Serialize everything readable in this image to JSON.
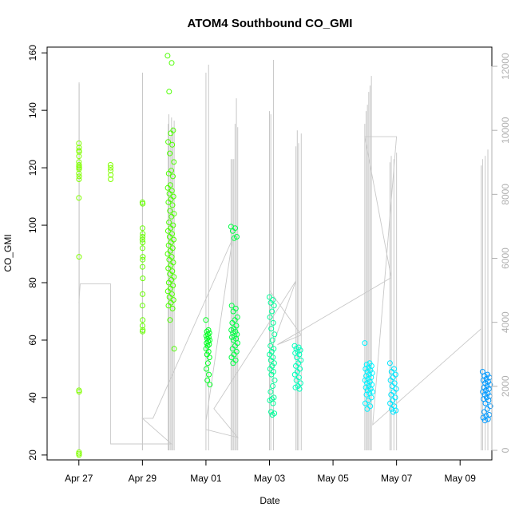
{
  "chart_data": {
    "type": "scatter",
    "title": "ATOM4 Southbound CO_GMI",
    "xlabel": "Date",
    "ylabel": "CO_GMI",
    "xlim": [
      "2018-04-26",
      "2018-05-10"
    ],
    "ylim": [
      18.3,
      162
    ],
    "yticks": [
      20,
      40,
      60,
      80,
      100,
      120,
      140,
      160
    ],
    "y2lim": [
      -300,
      12600
    ],
    "y2ticks": [
      0,
      2000,
      4000,
      6000,
      8000,
      10000,
      12000
    ],
    "xticks": [
      {
        "date": "2018-04-27",
        "label": "Apr 27"
      },
      {
        "date": "2018-04-29",
        "label": "Apr 29"
      },
      {
        "date": "2018-05-01",
        "label": "May 01"
      },
      {
        "date": "2018-05-03",
        "label": "May 03"
      },
      {
        "date": "2018-05-05",
        "label": "May 05"
      },
      {
        "date": "2018-05-07",
        "label": "May 07"
      },
      {
        "date": "2018-05-09",
        "label": "May 09"
      }
    ],
    "grid": false,
    "legend": "none",
    "point_colors": [
      "#80ff00",
      "#4dff00",
      "#00ff33",
      "#00ff66",
      "#00ffdd",
      "#00e6ff",
      "#0099ff"
    ],
    "altitude_color": "#c8c8c8",
    "clusters": [
      {
        "x_start": "2018-04-27T00:00",
        "x_end": "2018-04-27T00:12",
        "color": "#80ff00",
        "values": [
          128.5,
          127,
          126,
          125.5,
          124,
          122,
          121,
          120.5,
          120,
          119.5,
          118,
          117,
          116,
          109.5,
          89,
          42.5,
          42,
          21,
          20.5,
          20
        ]
      },
      {
        "x_start": "2018-04-27T23:55",
        "x_end": "2018-04-28T00:05",
        "color": "#80ff00",
        "values": [
          121,
          120,
          119,
          117.5,
          116
        ]
      },
      {
        "x_start": "2018-04-29T00:00",
        "x_end": "2018-04-29T00:20",
        "color": "#66ff00",
        "values": [
          108,
          107.5,
          99,
          97,
          96,
          95,
          94,
          92,
          89,
          88,
          85.5,
          81.5,
          76,
          72,
          67,
          65,
          63.5,
          63
        ]
      },
      {
        "x_start": "2018-04-29T19:00",
        "x_end": "2018-04-30T00:00",
        "color": "#4dff00",
        "values": [
          159,
          156.5,
          146.5,
          133,
          132,
          129,
          128,
          125,
          122,
          119,
          118,
          117,
          114,
          113,
          112,
          111,
          110,
          109,
          108,
          107,
          105,
          104,
          103,
          101,
          100,
          99,
          98,
          97,
          96,
          95,
          94,
          93,
          92,
          91,
          90,
          89,
          88,
          87,
          86,
          85,
          84,
          83,
          82,
          81,
          80,
          79,
          78,
          77,
          76,
          75,
          74,
          73,
          72,
          71,
          67,
          57
        ]
      },
      {
        "x_start": "2018-05-01T00:00",
        "x_end": "2018-05-01T03:00",
        "color": "#00ff22",
        "values": [
          67,
          63.5,
          63,
          62.5,
          62,
          61.5,
          61,
          60.5,
          60,
          59.5,
          59,
          58.5,
          58,
          57,
          56,
          55,
          54,
          52,
          50,
          48,
          46,
          44.5
        ]
      },
      {
        "x_start": "2018-05-01T19:00",
        "x_end": "2018-05-02T00:00",
        "color": "#00ff44",
        "values": [
          99.5,
          99,
          98,
          96,
          95.5,
          72,
          71,
          70,
          68,
          67,
          66,
          65,
          64,
          63.5,
          63,
          62.5,
          62,
          61.5,
          61,
          60.5,
          60,
          59,
          58,
          57,
          56,
          55,
          54,
          53,
          52
        ]
      },
      {
        "x_start": "2018-05-03T00:00",
        "x_end": "2018-05-03T04:00",
        "color": "#00ff99",
        "values": [
          75,
          74,
          73,
          72,
          70,
          68,
          66,
          64,
          62,
          60,
          58,
          57,
          56,
          55,
          54,
          53,
          52,
          51,
          50,
          49,
          48,
          46,
          44,
          42,
          40,
          39.5,
          39,
          38,
          35,
          34.5,
          34
        ]
      },
      {
        "x_start": "2018-05-03T19:00",
        "x_end": "2018-05-04T00:00",
        "color": "#00ffbb",
        "values": [
          58,
          57.5,
          57,
          56.5,
          56,
          55.5,
          55,
          54,
          53,
          52,
          51,
          50,
          49,
          48,
          47,
          46,
          45,
          44,
          43.5,
          43
        ]
      },
      {
        "x_start": "2018-05-06T00:00",
        "x_end": "2018-05-06T06:00",
        "color": "#00f2ff",
        "values": [
          59,
          52,
          51.5,
          51,
          50.5,
          50,
          49.5,
          49,
          48.5,
          48,
          47.5,
          47,
          46.5,
          46,
          45.5,
          45,
          44.5,
          44,
          43.5,
          43,
          42.5,
          42,
          41.5,
          41,
          40,
          39,
          38,
          37,
          36
        ]
      },
      {
        "x_start": "2018-05-06T19:00",
        "x_end": "2018-05-07T00:00",
        "color": "#00e6ff",
        "values": [
          52,
          50,
          49,
          48,
          47,
          46,
          45,
          44,
          43,
          42,
          41,
          40,
          39,
          38,
          37,
          36,
          35.5,
          35
        ]
      },
      {
        "x_start": "2018-05-09T17:00",
        "x_end": "2018-05-09T23:00",
        "color": "#0099ff",
        "values": [
          49,
          48,
          47.5,
          47,
          46.5,
          46,
          45.5,
          45,
          44.5,
          44,
          43.5,
          43,
          42.5,
          42,
          41.5,
          41,
          40.5,
          40,
          39.5,
          39,
          38,
          37,
          36,
          35,
          34,
          33.5,
          33,
          32.5,
          32
        ]
      }
    ],
    "altitude_spikes": [
      {
        "date": "2018-04-27T00:10",
        "altitude": 11500
      },
      {
        "date": "2018-04-27T00:12",
        "altitude": 11450
      },
      {
        "date": "2018-04-29T00:00",
        "altitude": 10000
      },
      {
        "date": "2018-04-29T00:05",
        "altitude": 11800
      },
      {
        "date": "2018-04-29T19:30",
        "altitude": 10200
      },
      {
        "date": "2018-04-29T20:00",
        "altitude": 10500
      },
      {
        "date": "2018-04-29T21:00",
        "altitude": 9800
      },
      {
        "date": "2018-04-29T22:00",
        "altitude": 10400
      },
      {
        "date": "2018-04-29T23:00",
        "altitude": 10100
      },
      {
        "date": "2018-04-30T00:00",
        "altitude": 10300
      },
      {
        "date": "2018-05-01T00:00",
        "altitude": 11800
      },
      {
        "date": "2018-05-01T02:00",
        "altitude": 12050
      },
      {
        "date": "2018-05-01T19:00",
        "altitude": 9100
      },
      {
        "date": "2018-05-01T20:00",
        "altitude": 9100
      },
      {
        "date": "2018-05-01T21:00",
        "altitude": 9100
      },
      {
        "date": "2018-05-01T22:00",
        "altitude": 10200
      },
      {
        "date": "2018-05-01T23:00",
        "altitude": 11000
      },
      {
        "date": "2018-05-02T00:00",
        "altitude": 10100
      },
      {
        "date": "2018-05-03T00:00",
        "altitude": 10600
      },
      {
        "date": "2018-05-03T01:00",
        "altitude": 10500
      },
      {
        "date": "2018-05-03T03:00",
        "altitude": 12200
      },
      {
        "date": "2018-05-03T20:00",
        "altitude": 9500
      },
      {
        "date": "2018-05-03T21:00",
        "altitude": 10000
      },
      {
        "date": "2018-05-03T22:00",
        "altitude": 9600
      },
      {
        "date": "2018-05-04T00:00",
        "altitude": 9900
      },
      {
        "date": "2018-05-06T00:00",
        "altitude": 10200
      },
      {
        "date": "2018-05-06T01:00",
        "altitude": 10600
      },
      {
        "date": "2018-05-06T02:00",
        "altitude": 10800
      },
      {
        "date": "2018-05-06T03:00",
        "altitude": 11200
      },
      {
        "date": "2018-05-06T04:00",
        "altitude": 11400
      },
      {
        "date": "2018-05-06T05:00",
        "altitude": 11700
      },
      {
        "date": "2018-05-06T19:00",
        "altitude": 9000
      },
      {
        "date": "2018-05-06T20:00",
        "altitude": 9200
      },
      {
        "date": "2018-05-06T22:00",
        "altitude": 9100
      },
      {
        "date": "2018-05-07T00:00",
        "altitude": 9300
      },
      {
        "date": "2018-05-09T16:00",
        "altitude": 8900
      },
      {
        "date": "2018-05-09T17:00",
        "altitude": 9100
      },
      {
        "date": "2018-05-09T19:00",
        "altitude": 9200
      },
      {
        "date": "2018-05-09T21:00",
        "altitude": 9400
      }
    ],
    "altitude_path": [
      {
        "date": "2018-04-27T00:00",
        "altitude": 4600
      },
      {
        "date": "2018-04-27T01:00",
        "altitude": 5200
      },
      {
        "date": "2018-04-28T00:00",
        "altitude": 5200
      },
      {
        "date": "2018-04-28T00:00",
        "altitude": 200
      },
      {
        "date": "2018-04-29T00:00",
        "altitude": 200
      },
      {
        "date": "2018-04-29T22:00",
        "altitude": 200
      },
      {
        "date": "2018-04-29T00:00",
        "altitude": 1000
      },
      {
        "date": "2018-04-29T08:00",
        "altitude": 1000
      },
      {
        "date": "2018-05-01T20:00",
        "altitude": 6600
      },
      {
        "date": "2018-05-01T00:00",
        "altitude": 900
      },
      {
        "date": "2018-05-01T00:00",
        "altitude": 650
      },
      {
        "date": "2018-05-02T00:00",
        "altitude": 400
      },
      {
        "date": "2018-05-01T06:00",
        "altitude": 1300
      },
      {
        "date": "2018-05-03T20:00",
        "altitude": 5300
      },
      {
        "date": "2018-05-03T00:00",
        "altitude": 3000
      },
      {
        "date": "2018-05-03T00:00",
        "altitude": 5000
      },
      {
        "date": "2018-05-04T00:00",
        "altitude": 3600
      },
      {
        "date": "2018-05-03T06:00",
        "altitude": 3300
      },
      {
        "date": "2018-05-06T20:00",
        "altitude": 5400
      },
      {
        "date": "2018-05-06T00:00",
        "altitude": 9800
      },
      {
        "date": "2018-05-07T00:00",
        "altitude": 9800
      },
      {
        "date": "2018-05-06T06:00",
        "altitude": 800
      },
      {
        "date": "2018-05-09T16:00",
        "altitude": 3800
      }
    ]
  }
}
